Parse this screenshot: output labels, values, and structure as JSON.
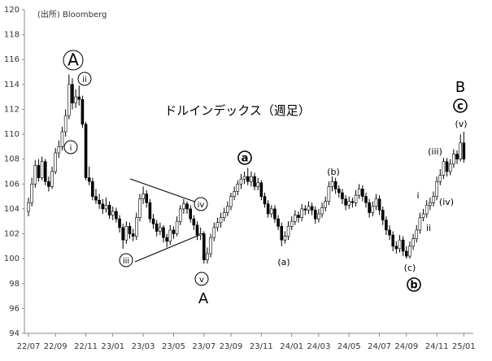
{
  "chart_data": {
    "type": "candlestick",
    "title": "ドルインデックス（週足）",
    "source": "(出所) Bloomberg",
    "ylim": [
      94,
      120
    ],
    "yticks": [
      94,
      96,
      98,
      100,
      102,
      104,
      106,
      108,
      110,
      112,
      114,
      116,
      118,
      120
    ],
    "up_color": "#ffffff",
    "down_color": "#000000",
    "line_color": "#000000",
    "categories": [
      "22/07",
      null,
      null,
      null,
      null,
      null,
      null,
      null,
      "22/09",
      null,
      null,
      null,
      null,
      null,
      null,
      null,
      null,
      "22/11",
      null,
      null,
      null,
      null,
      null,
      null,
      null,
      "23/01",
      null,
      null,
      null,
      null,
      null,
      null,
      null,
      null,
      "23/03",
      null,
      null,
      null,
      null,
      null,
      null,
      null,
      null,
      "23/05",
      null,
      null,
      null,
      null,
      null,
      null,
      null,
      null,
      "23/07",
      null,
      null,
      null,
      null,
      null,
      null,
      null,
      "23/09",
      null,
      null,
      null,
      null,
      null,
      null,
      null,
      null,
      "23/11",
      null,
      null,
      null,
      null,
      null,
      null,
      null,
      null,
      "24/01",
      null,
      null,
      null,
      null,
      null,
      null,
      null,
      "24/03",
      null,
      null,
      null,
      null,
      null,
      null,
      null,
      null,
      "24/05",
      null,
      null,
      null,
      null,
      null,
      null,
      null,
      null,
      "24/07",
      null,
      null,
      null,
      null,
      null,
      null,
      null,
      "24/09",
      null,
      null,
      null,
      null,
      null,
      null,
      null,
      null,
      "24/11",
      null,
      null,
      null,
      null,
      null,
      null,
      null,
      "25/01"
    ],
    "ohlc": [
      [
        103.8,
        104.9,
        103.4,
        104.5
      ],
      [
        104.5,
        106.5,
        104.2,
        106.0
      ],
      [
        106.0,
        107.9,
        105.7,
        107.5
      ],
      [
        107.5,
        108.0,
        106.2,
        106.5
      ],
      [
        106.5,
        108.2,
        106.3,
        107.8
      ],
      [
        107.8,
        108.0,
        105.9,
        106.2
      ],
      [
        106.2,
        106.6,
        105.4,
        105.8
      ],
      [
        105.8,
        107.4,
        105.6,
        107.0
      ],
      [
        107.0,
        108.9,
        106.8,
        108.5
      ],
      [
        108.5,
        109.5,
        108.1,
        109.0
      ],
      [
        109.0,
        110.6,
        108.7,
        110.2
      ],
      [
        110.2,
        112.0,
        109.8,
        111.5
      ],
      [
        111.5,
        114.8,
        111.2,
        114.0
      ],
      [
        114.0,
        114.5,
        112.0,
        112.5
      ],
      [
        112.5,
        113.6,
        112.1,
        113.0
      ],
      [
        113.0,
        113.9,
        112.3,
        112.8
      ],
      [
        112.8,
        113.1,
        110.5,
        110.8
      ],
      [
        110.8,
        111.0,
        106.3,
        106.5
      ],
      [
        106.5,
        107.4,
        105.9,
        106.2
      ],
      [
        106.2,
        106.5,
        104.7,
        105.0
      ],
      [
        105.0,
        105.6,
        104.4,
        104.7
      ],
      [
        104.7,
        105.2,
        104.0,
        104.4
      ],
      [
        104.4,
        104.8,
        103.6,
        104.0
      ],
      [
        104.0,
        104.9,
        103.7,
        104.3
      ],
      [
        104.3,
        104.6,
        103.2,
        103.5
      ],
      [
        103.5,
        104.2,
        103.1,
        103.8
      ],
      [
        103.8,
        104.1,
        102.9,
        103.2
      ],
      [
        103.2,
        103.5,
        102.1,
        102.5
      ],
      [
        102.5,
        102.8,
        100.8,
        101.5
      ],
      [
        101.5,
        103.0,
        101.2,
        102.6
      ],
      [
        102.6,
        102.9,
        101.6,
        102.0
      ],
      [
        102.0,
        102.4,
        101.4,
        101.8
      ],
      [
        101.8,
        103.7,
        101.5,
        103.3
      ],
      [
        103.3,
        105.2,
        103.0,
        104.8
      ],
      [
        104.8,
        105.8,
        104.4,
        105.2
      ],
      [
        105.2,
        105.5,
        104.1,
        104.5
      ],
      [
        104.5,
        104.8,
        102.9,
        103.2
      ],
      [
        103.2,
        103.6,
        102.4,
        102.8
      ],
      [
        102.8,
        103.1,
        101.8,
        102.2
      ],
      [
        102.2,
        102.9,
        101.9,
        102.5
      ],
      [
        102.5,
        102.7,
        101.3,
        101.7
      ],
      [
        101.7,
        102.0,
        100.9,
        101.4
      ],
      [
        101.4,
        102.7,
        101.1,
        102.3
      ],
      [
        102.3,
        102.6,
        101.6,
        102.0
      ],
      [
        102.0,
        103.4,
        101.8,
        103.0
      ],
      [
        103.0,
        104.3,
        102.7,
        104.0
      ],
      [
        104.0,
        104.8,
        103.6,
        104.4
      ],
      [
        104.4,
        104.6,
        103.6,
        104.0
      ],
      [
        104.0,
        104.3,
        102.9,
        103.2
      ],
      [
        103.2,
        103.5,
        102.3,
        102.7
      ],
      [
        102.7,
        103.0,
        101.5,
        101.9
      ],
      [
        101.9,
        102.5,
        101.5,
        102.0
      ],
      [
        102.0,
        102.2,
        99.6,
        99.9
      ],
      [
        99.9,
        100.9,
        99.6,
        100.4
      ],
      [
        100.4,
        102.0,
        100.1,
        101.7
      ],
      [
        101.7,
        102.9,
        101.4,
        102.5
      ],
      [
        102.5,
        103.3,
        102.2,
        102.9
      ],
      [
        102.9,
        103.7,
        102.5,
        103.3
      ],
      [
        103.3,
        104.1,
        103.0,
        103.7
      ],
      [
        103.7,
        104.6,
        103.4,
        104.2
      ],
      [
        104.2,
        105.3,
        103.9,
        105.0
      ],
      [
        105.0,
        105.8,
        104.7,
        105.4
      ],
      [
        105.4,
        106.3,
        105.1,
        106.0
      ],
      [
        106.0,
        106.8,
        105.6,
        106.4
      ],
      [
        106.4,
        107.0,
        106.0,
        106.6
      ],
      [
        106.6,
        107.3,
        105.9,
        106.2
      ],
      [
        106.2,
        107.0,
        105.8,
        106.6
      ],
      [
        106.6,
        106.9,
        105.5,
        105.8
      ],
      [
        105.8,
        106.5,
        105.5,
        106.1
      ],
      [
        106.1,
        106.3,
        104.7,
        105.0
      ],
      [
        105.0,
        105.3,
        104.1,
        104.4
      ],
      [
        104.4,
        104.7,
        103.3,
        103.6
      ],
      [
        103.6,
        104.3,
        103.3,
        104.0
      ],
      [
        104.0,
        104.3,
        102.9,
        103.2
      ],
      [
        103.2,
        103.5,
        102.3,
        102.6
      ],
      [
        102.6,
        102.9,
        101.0,
        101.5
      ],
      [
        101.5,
        102.2,
        101.2,
        101.8
      ],
      [
        101.8,
        103.0,
        101.5,
        102.6
      ],
      [
        102.6,
        103.4,
        102.3,
        103.0
      ],
      [
        103.0,
        103.9,
        102.7,
        103.5
      ],
      [
        103.5,
        103.8,
        102.9,
        103.3
      ],
      [
        103.3,
        104.4,
        103.0,
        104.0
      ],
      [
        104.0,
        104.3,
        103.5,
        103.9
      ],
      [
        103.9,
        104.6,
        103.6,
        104.2
      ],
      [
        104.2,
        104.5,
        103.5,
        103.9
      ],
      [
        103.9,
        104.2,
        102.8,
        103.2
      ],
      [
        103.2,
        104.0,
        102.9,
        103.6
      ],
      [
        103.6,
        104.5,
        103.3,
        104.1
      ],
      [
        104.1,
        105.0,
        103.8,
        104.6
      ],
      [
        104.6,
        106.2,
        104.3,
        105.8
      ],
      [
        105.8,
        106.6,
        105.4,
        106.2
      ],
      [
        106.2,
        106.5,
        105.2,
        105.6
      ],
      [
        105.6,
        105.9,
        104.9,
        105.3
      ],
      [
        105.3,
        105.6,
        104.4,
        104.8
      ],
      [
        104.8,
        105.1,
        103.9,
        104.3
      ],
      [
        104.3,
        105.0,
        104.0,
        104.6
      ],
      [
        104.6,
        104.9,
        104.1,
        104.5
      ],
      [
        104.5,
        105.5,
        104.2,
        105.1
      ],
      [
        105.1,
        106.0,
        104.8,
        105.6
      ],
      [
        105.6,
        105.9,
        104.6,
        105.0
      ],
      [
        105.0,
        105.3,
        104.1,
        104.5
      ],
      [
        104.5,
        104.8,
        103.3,
        103.7
      ],
      [
        103.7,
        104.6,
        103.4,
        104.2
      ],
      [
        104.2,
        105.2,
        103.9,
        104.8
      ],
      [
        104.8,
        105.1,
        103.5,
        103.9
      ],
      [
        103.9,
        104.2,
        102.7,
        103.1
      ],
      [
        103.1,
        103.4,
        101.9,
        102.3
      ],
      [
        102.3,
        102.7,
        101.5,
        101.9
      ],
      [
        101.9,
        102.2,
        100.6,
        101.0
      ],
      [
        101.0,
        101.4,
        100.4,
        100.8
      ],
      [
        100.8,
        101.9,
        100.5,
        101.5
      ],
      [
        101.5,
        101.8,
        100.2,
        100.6
      ],
      [
        100.6,
        101.0,
        100.0,
        100.2
      ],
      [
        100.2,
        101.4,
        100.0,
        101.0
      ],
      [
        101.0,
        102.0,
        100.7,
        101.6
      ],
      [
        101.6,
        102.7,
        101.3,
        102.3
      ],
      [
        102.3,
        103.7,
        102.0,
        103.3
      ],
      [
        103.3,
        104.0,
        103.0,
        103.6
      ],
      [
        103.6,
        104.7,
        103.3,
        104.3
      ],
      [
        104.3,
        104.9,
        103.9,
        104.5
      ],
      [
        104.5,
        105.4,
        104.2,
        105.0
      ],
      [
        105.0,
        106.6,
        104.7,
        106.2
      ],
      [
        106.2,
        107.2,
        105.9,
        106.7
      ],
      [
        106.7,
        108.1,
        106.4,
        107.8
      ],
      [
        107.8,
        108.1,
        106.6,
        107.0
      ],
      [
        107.0,
        108.0,
        106.7,
        107.6
      ],
      [
        107.6,
        108.8,
        107.3,
        108.4
      ],
      [
        108.4,
        108.7,
        107.6,
        108.0
      ],
      [
        108.0,
        110.0,
        107.8,
        109.3
      ],
      [
        109.3,
        110.2,
        107.7,
        108.0
      ]
    ],
    "annotations": [
      "A",
      "ii",
      "i",
      "iii",
      "iv",
      "v",
      "A",
      "a",
      "(a)",
      "(b)",
      "(c)",
      "b",
      "i",
      "ii",
      "(iii)",
      "(iv)",
      "(v)",
      "c",
      "B"
    ]
  }
}
